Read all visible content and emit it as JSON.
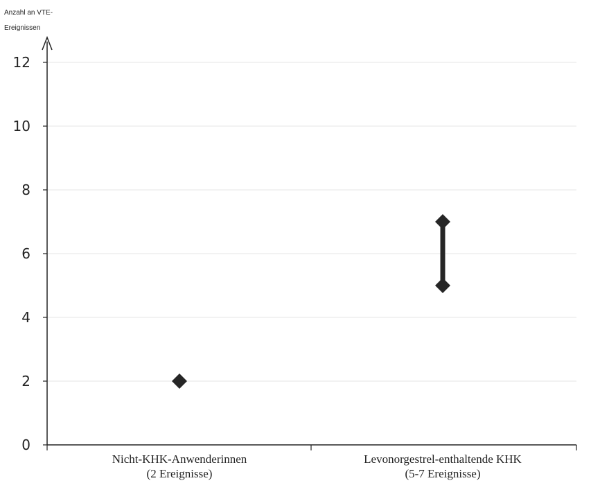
{
  "chart_data": {
    "type": "scatter",
    "ylabel_lines": [
      "Anzahl an VTE-",
      "Ereignissen"
    ],
    "ylim": [
      0,
      12
    ],
    "yticks": [
      0,
      2,
      4,
      6,
      8,
      10,
      12
    ],
    "grid": true,
    "categories": [
      {
        "label_lines": [
          "Nicht-KHK-Anwenderinnen",
          "(2 Ereignisse)"
        ]
      },
      {
        "label_lines": [
          "Levonorgestrel-enthaltende KHK",
          "(5-7 Ereignisse)"
        ]
      }
    ],
    "points": [
      {
        "category": 0,
        "values": [
          2
        ]
      },
      {
        "category": 1,
        "values": [
          5,
          7
        ]
      }
    ],
    "marker": "diamond",
    "color": "#262626"
  }
}
